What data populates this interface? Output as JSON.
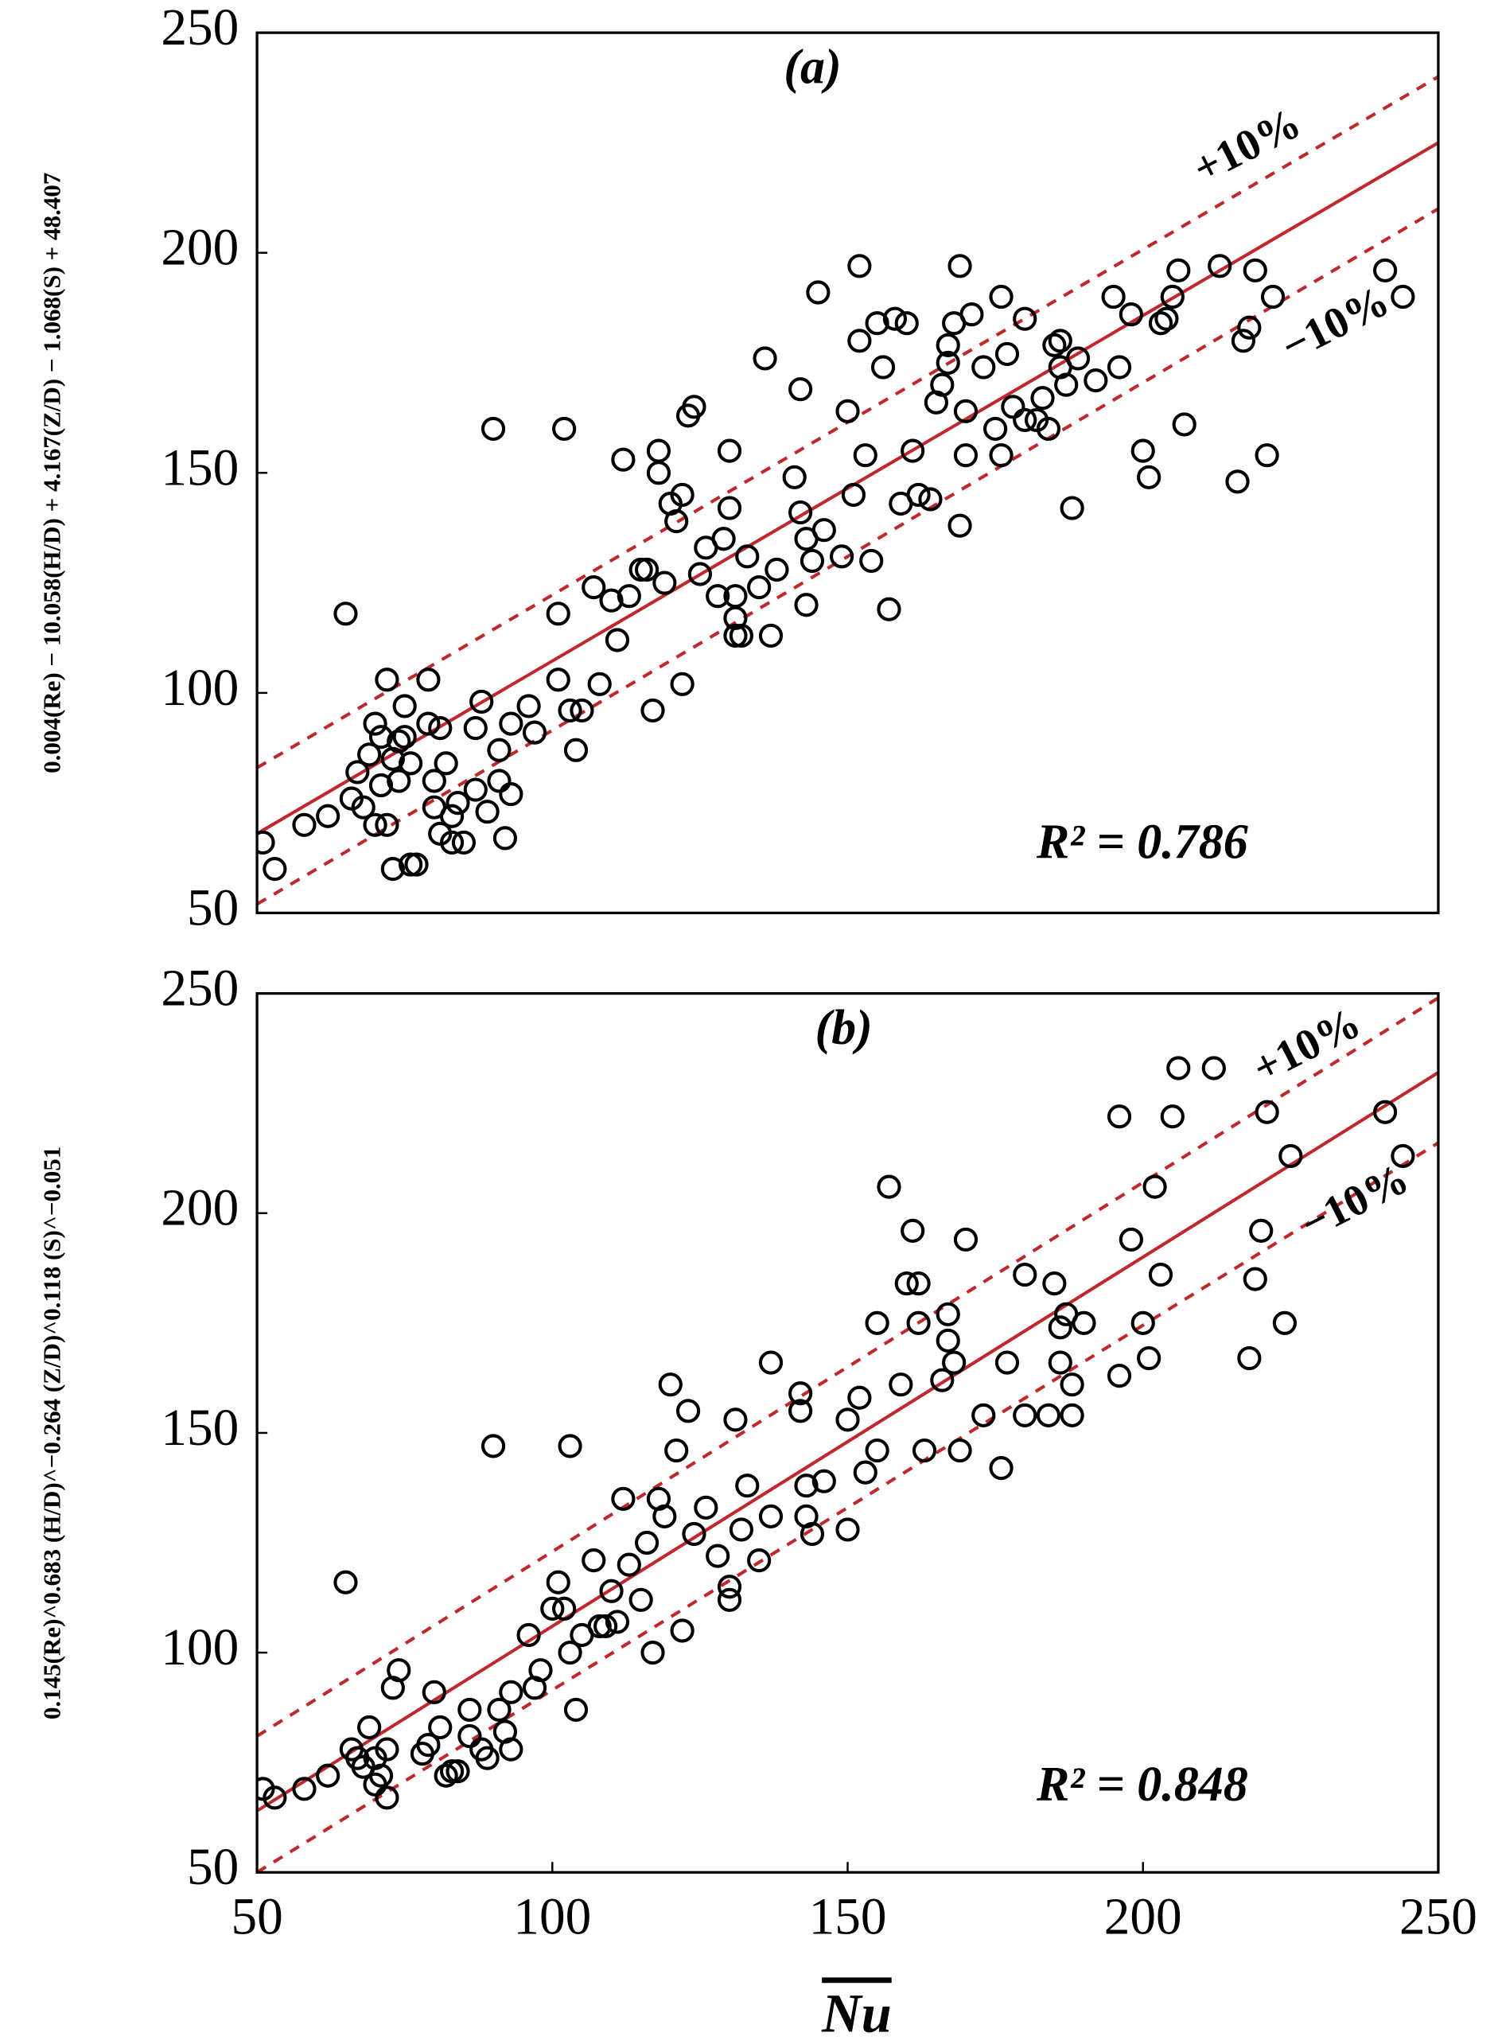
{
  "chart_data": [
    {
      "type": "scatter",
      "title": "(a)",
      "ylabel": "0.004(Re) − 10.058(H/D) + 4.167(Z/D) − 1.068(S) + 48.407",
      "annotation": "R² = 0.786",
      "marker_color": "#000000",
      "line_color": "#c0282d",
      "xlim": [
        50,
        250
      ],
      "ylim": [
        50,
        250
      ],
      "yticks": [
        50,
        100,
        150,
        200,
        250
      ],
      "fit_line": {
        "x": [
          50,
          250
        ],
        "y": [
          68,
          225
        ]
      },
      "upper_line": {
        "x": [
          50,
          250
        ],
        "y": [
          83,
          240
        ],
        "label": "+10%"
      },
      "lower_line": {
        "x": [
          50,
          250
        ],
        "y": [
          52,
          210
        ],
        "label": "−10%"
      },
      "x": [
        51,
        53,
        58,
        62,
        65,
        66,
        67,
        68,
        69,
        70,
        70,
        71,
        71,
        72,
        72,
        73,
        73,
        74,
        74,
        75,
        75,
        76,
        76,
        77,
        79,
        79,
        80,
        80,
        81,
        81,
        82,
        83,
        83,
        84,
        85,
        87,
        87,
        88,
        89,
        90,
        91,
        91,
        92,
        93,
        93,
        96,
        97,
        101,
        101,
        102,
        103,
        104,
        105,
        107,
        108,
        110,
        111,
        112,
        113,
        115,
        116,
        117,
        118,
        118,
        119,
        120,
        121,
        122,
        122,
        123,
        124,
        125,
        126,
        128,
        129,
        130,
        130,
        131,
        131,
        131,
        132,
        133,
        135,
        136,
        137,
        138,
        141,
        142,
        142,
        143,
        143,
        144,
        145,
        146,
        149,
        150,
        151,
        152,
        152,
        153,
        154,
        155,
        156,
        157,
        158,
        159,
        160,
        161,
        162,
        164,
        165,
        166,
        167,
        167,
        168,
        169,
        169,
        170,
        170,
        171,
        173,
        175,
        176,
        176,
        177,
        178,
        180,
        180,
        182,
        183,
        184,
        185,
        186,
        186,
        187,
        188,
        189,
        192,
        195,
        196,
        198,
        200,
        201,
        203,
        204,
        205,
        206,
        207,
        213,
        216,
        217,
        218,
        219,
        221,
        222,
        241,
        244
      ],
      "y": [
        66,
        60,
        70,
        72,
        118,
        76,
        82,
        74,
        86,
        93,
        70,
        90,
        79,
        103,
        70,
        60,
        85,
        80,
        89,
        97,
        90,
        61,
        84,
        61,
        93,
        103,
        80,
        74,
        92,
        68,
        84,
        72,
        66,
        75,
        66,
        78,
        92,
        98,
        73,
        160,
        87,
        80,
        67,
        77,
        93,
        97,
        91,
        103,
        118,
        160,
        96,
        87,
        96,
        124,
        102,
        121,
        112,
        153,
        122,
        128,
        128,
        96,
        150,
        155,
        125,
        143,
        139,
        145,
        102,
        163,
        165,
        127,
        133,
        122,
        135,
        155,
        142,
        122,
        117,
        113,
        113,
        131,
        124,
        176,
        113,
        128,
        149,
        169,
        141,
        135,
        120,
        130,
        191,
        137,
        131,
        164,
        145,
        180,
        197,
        154,
        130,
        184,
        174,
        119,
        185,
        143,
        184,
        155,
        145,
        144,
        166,
        170,
        179,
        175,
        184,
        197,
        138,
        154,
        164,
        186,
        174,
        160,
        190,
        154,
        177,
        165,
        185,
        162,
        162,
        167,
        160,
        179,
        174,
        180,
        170,
        142,
        176,
        171,
        190,
        174,
        186,
        155,
        149,
        184,
        185,
        190,
        196,
        161,
        197,
        148,
        180,
        183,
        196,
        154,
        190,
        196,
        190
      ]
    },
    {
      "type": "scatter",
      "title": "(b)",
      "ylabel": "0.145(Re)^0.683 (H/D)^−0.264 (Z/D)^0.118 (S)^−0.051",
      "annotation": "R² = 0.848",
      "xlabel": "Nu",
      "marker_color": "#000000",
      "line_color": "#c0282d",
      "xlim": [
        50,
        250
      ],
      "ylim": [
        50,
        250
      ],
      "xticks": [
        50,
        100,
        150,
        200,
        250
      ],
      "yticks": [
        50,
        100,
        150,
        200,
        250
      ],
      "fit_line": {
        "x": [
          50,
          250
        ],
        "y": [
          64,
          232
        ]
      },
      "upper_line": {
        "x": [
          50,
          250
        ],
        "y": [
          81,
          249
        ],
        "label": "+10%"
      },
      "lower_line": {
        "x": [
          50,
          250
        ],
        "y": [
          50,
          216
        ],
        "label": "−10%"
      },
      "x": [
        51,
        53,
        58,
        62,
        65,
        66,
        67,
        68,
        69,
        70,
        70,
        71,
        72,
        72,
        73,
        74,
        78,
        79,
        80,
        81,
        82,
        83,
        84,
        86,
        86,
        88,
        89,
        90,
        91,
        92,
        93,
        93,
        96,
        97,
        98,
        100,
        101,
        102,
        103,
        103,
        104,
        105,
        107,
        108,
        109,
        110,
        111,
        112,
        113,
        115,
        116,
        117,
        118,
        119,
        120,
        121,
        122,
        123,
        124,
        126,
        128,
        130,
        130,
        131,
        132,
        133,
        135,
        137,
        137,
        142,
        142,
        143,
        143,
        144,
        146,
        150,
        150,
        152,
        153,
        155,
        155,
        157,
        159,
        160,
        161,
        162,
        162,
        163,
        166,
        167,
        167,
        168,
        169,
        170,
        173,
        176,
        177,
        180,
        180,
        184,
        185,
        186,
        186,
        187,
        188,
        188,
        190,
        196,
        196,
        198,
        200,
        201,
        202,
        203,
        205,
        206,
        212,
        218,
        219,
        220,
        221,
        224,
        225,
        241,
        244
      ],
      "y": [
        69,
        67,
        69,
        72,
        116,
        78,
        76,
        74,
        83,
        70,
        76,
        72,
        67,
        78,
        92,
        96,
        77,
        79,
        91,
        83,
        72,
        73,
        73,
        87,
        81,
        78,
        76,
        147,
        87,
        82,
        91,
        78,
        104,
        92,
        96,
        110,
        116,
        110,
        147,
        100,
        87,
        104,
        121,
        106,
        106,
        114,
        107,
        135,
        120,
        112,
        125,
        100,
        135,
        131,
        161,
        146,
        105,
        155,
        127,
        133,
        122,
        115,
        112,
        153,
        128,
        138,
        121,
        166,
        131,
        155,
        159,
        131,
        138,
        127,
        139,
        153,
        128,
        158,
        141,
        175,
        146,
        206,
        161,
        184,
        196,
        175,
        184,
        146,
        162,
        171,
        177,
        166,
        146,
        194,
        154,
        142,
        166,
        186,
        154,
        154,
        184,
        166,
        174,
        177,
        154,
        161,
        175,
        222,
        163,
        194,
        175,
        167,
        206,
        186,
        222,
        233,
        233,
        167,
        185,
        196,
        223,
        175,
        213,
        223,
        213
      ]
    }
  ]
}
